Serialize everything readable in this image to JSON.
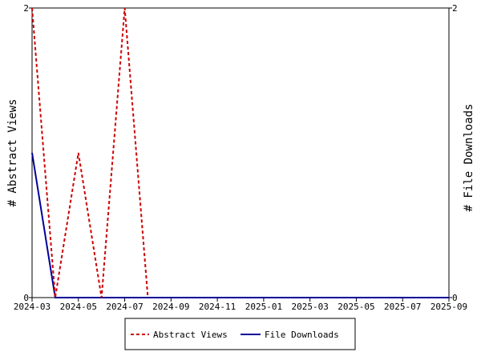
{
  "chart_data": {
    "type": "line",
    "x": [
      "2024-03",
      "2024-04",
      "2024-05",
      "2024-06",
      "2024-07",
      "2024-08",
      "2024-09",
      "2024-10",
      "2024-11",
      "2024-12",
      "2025-01",
      "2025-02",
      "2025-03",
      "2025-04",
      "2025-05",
      "2025-06",
      "2025-07",
      "2025-08",
      "2025-09"
    ],
    "x_ticks": [
      "2024-03",
      "2024-05",
      "2024-07",
      "2024-09",
      "2024-11",
      "2025-01",
      "2025-03",
      "2025-05",
      "2025-07",
      "2025-09"
    ],
    "series": [
      {
        "name": "Abstract Views",
        "axis": "left",
        "color": "#cc0000",
        "style": "dashed",
        "values": [
          2,
          0,
          1,
          0,
          2,
          0,
          null,
          null,
          null,
          null,
          null,
          null,
          null,
          null,
          null,
          null,
          null,
          null,
          null
        ]
      },
      {
        "name": "File Downloads",
        "axis": "right",
        "color": "#000099",
        "style": "solid",
        "values": [
          1,
          0,
          0,
          0,
          0,
          0,
          0,
          0,
          0,
          0,
          0,
          0,
          0,
          0,
          0,
          0,
          0,
          0,
          0
        ]
      }
    ],
    "ylabel_left": "# Abstract Views",
    "ylabel_right": "# File Downloads",
    "ylim_left": [
      0,
      2
    ],
    "ylim_right": [
      0,
      2
    ],
    "y_ticks_left": [
      "0",
      "2"
    ],
    "y_ticks_right": [
      "0",
      "2"
    ],
    "grid": false,
    "legend_position": "bottom"
  }
}
